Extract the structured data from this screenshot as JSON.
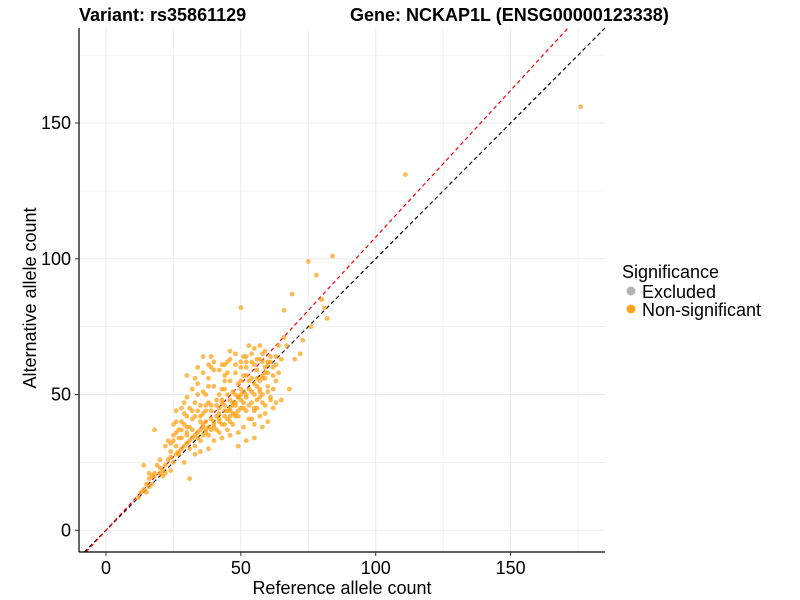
{
  "chart_data": {
    "type": "scatter",
    "title_left": "Variant: rs35861129",
    "title_right": "Gene: NCKAP1L (ENSG00000123338)",
    "xlabel": "Reference allele count",
    "ylabel": "Alternative allele count",
    "xlim": [
      -10,
      185
    ],
    "ylim": [
      -8,
      185
    ],
    "x_ticks": [
      0,
      50,
      100,
      150
    ],
    "y_ticks": [
      0,
      50,
      100,
      150
    ],
    "grid": true,
    "reference_lines": [
      {
        "name": "identity",
        "slope": 1.0,
        "color": "#000000",
        "style": "dashed"
      },
      {
        "name": "fit",
        "slope": 1.08,
        "color": "#ff0000",
        "style": "dashed"
      }
    ],
    "legend": {
      "title": "Significance",
      "position": "right",
      "entries": [
        {
          "label": "Excluded",
          "color": "#b3b3b3"
        },
        {
          "label": "Non-significant",
          "color": "#ffa31a"
        }
      ]
    },
    "series": [
      {
        "name": "Non-significant",
        "color": "#ffa31a",
        "points": [
          [
            176,
            156
          ],
          [
            111,
            131
          ],
          [
            75,
            99
          ],
          [
            84,
            101
          ],
          [
            78,
            94
          ],
          [
            69,
            87
          ],
          [
            80,
            85
          ],
          [
            81,
            82
          ],
          [
            82,
            78
          ],
          [
            76,
            75
          ],
          [
            66,
            81
          ],
          [
            50,
            82
          ],
          [
            73,
            70
          ],
          [
            72,
            65
          ],
          [
            66,
            71
          ],
          [
            64,
            68
          ],
          [
            63,
            61
          ],
          [
            63,
            55
          ],
          [
            58,
            62
          ],
          [
            60,
            58
          ],
          [
            57,
            51
          ],
          [
            56,
            48
          ],
          [
            55,
            44
          ],
          [
            54,
            41
          ],
          [
            52,
            60
          ],
          [
            52,
            57
          ],
          [
            50,
            55
          ],
          [
            50,
            52
          ],
          [
            49,
            49
          ],
          [
            48,
            46
          ],
          [
            47,
            43
          ],
          [
            46,
            40
          ],
          [
            45,
            62
          ],
          [
            45,
            58
          ],
          [
            44,
            55
          ],
          [
            44,
            52
          ],
          [
            43,
            48
          ],
          [
            42,
            45
          ],
          [
            41,
            42
          ],
          [
            40,
            39
          ],
          [
            39,
            64
          ],
          [
            39,
            60
          ],
          [
            38,
            56
          ],
          [
            38,
            53
          ],
          [
            37,
            50
          ],
          [
            37,
            46
          ],
          [
            36,
            43
          ],
          [
            35,
            40
          ],
          [
            35,
            37
          ],
          [
            34,
            54
          ],
          [
            34,
            50
          ],
          [
            33,
            47
          ],
          [
            32,
            44
          ],
          [
            32,
            41
          ],
          [
            31,
            38
          ],
          [
            30,
            35
          ],
          [
            30,
            32
          ],
          [
            29,
            47
          ],
          [
            29,
            43
          ],
          [
            28,
            40
          ],
          [
            28,
            37
          ],
          [
            27,
            34
          ],
          [
            26,
            31
          ],
          [
            26,
            28
          ],
          [
            25,
            39
          ],
          [
            25,
            35
          ],
          [
            24,
            32
          ],
          [
            24,
            29
          ],
          [
            23,
            26
          ],
          [
            22,
            24
          ],
          [
            21,
            22
          ],
          [
            20,
            21
          ],
          [
            19,
            24
          ],
          [
            18,
            21
          ],
          [
            17,
            20
          ],
          [
            16,
            19
          ],
          [
            15,
            17
          ],
          [
            14,
            15
          ],
          [
            13,
            14
          ],
          [
            12,
            12
          ],
          [
            14,
            24
          ],
          [
            16,
            21
          ],
          [
            18,
            37
          ],
          [
            20,
            26
          ],
          [
            22,
            31
          ],
          [
            26,
            44
          ],
          [
            30,
            49
          ],
          [
            33,
            56
          ],
          [
            36,
            64
          ],
          [
            40,
            59
          ],
          [
            43,
            61
          ],
          [
            46,
            66
          ],
          [
            48,
            65
          ],
          [
            51,
            64
          ],
          [
            53,
            68
          ],
          [
            55,
            67
          ],
          [
            57,
            68
          ],
          [
            59,
            66
          ],
          [
            61,
            64
          ],
          [
            62,
            57
          ],
          [
            60,
            53
          ],
          [
            58,
            50
          ],
          [
            56,
            53
          ],
          [
            54,
            56
          ],
          [
            52,
            49
          ],
          [
            50,
            45
          ],
          [
            48,
            42
          ],
          [
            46,
            48
          ],
          [
            44,
            46
          ],
          [
            42,
            50
          ],
          [
            40,
            53
          ],
          [
            38,
            47
          ],
          [
            36,
            51
          ],
          [
            34,
            44
          ],
          [
            32,
            37
          ],
          [
            30,
            42
          ],
          [
            28,
            30
          ],
          [
            26,
            36
          ],
          [
            24,
            27
          ],
          [
            23,
            33
          ],
          [
            27,
            29
          ],
          [
            29,
            25
          ],
          [
            31,
            19
          ],
          [
            33,
            28
          ],
          [
            35,
            33
          ],
          [
            37,
            36
          ],
          [
            39,
            41
          ],
          [
            41,
            37
          ],
          [
            43,
            34
          ],
          [
            45,
            37
          ],
          [
            47,
            39
          ],
          [
            49,
            36
          ],
          [
            51,
            38
          ],
          [
            53,
            41
          ],
          [
            55,
            39
          ],
          [
            57,
            42
          ],
          [
            59,
            46
          ],
          [
            61,
            48
          ],
          [
            63,
            47
          ],
          [
            58,
            56
          ],
          [
            56,
            59
          ],
          [
            54,
            62
          ],
          [
            52,
            64
          ],
          [
            50,
            62
          ],
          [
            48,
            58
          ],
          [
            46,
            55
          ],
          [
            44,
            57
          ],
          [
            42,
            59
          ],
          [
            40,
            62
          ],
          [
            38,
            61
          ],
          [
            36,
            58
          ],
          [
            34,
            60
          ],
          [
            32,
            52
          ],
          [
            30,
            57
          ],
          [
            28,
            45
          ],
          [
            26,
            40
          ],
          [
            44,
            39
          ],
          [
            42,
            36
          ],
          [
            40,
            33
          ],
          [
            38,
            35
          ],
          [
            36,
            38
          ],
          [
            34,
            36
          ],
          [
            32,
            34
          ],
          [
            30,
            38
          ],
          [
            28,
            34
          ],
          [
            41,
            48
          ],
          [
            43,
            52
          ],
          [
            45,
            50
          ],
          [
            47,
            51
          ],
          [
            49,
            54
          ],
          [
            51,
            57
          ],
          [
            53,
            55
          ],
          [
            55,
            61
          ],
          [
            57,
            63
          ],
          [
            59,
            60
          ],
          [
            61,
            62
          ],
          [
            63,
            64
          ],
          [
            65,
            63
          ],
          [
            67,
            68
          ],
          [
            39,
            44
          ],
          [
            37,
            40
          ],
          [
            35,
            46
          ],
          [
            33,
            42
          ],
          [
            31,
            45
          ],
          [
            29,
            39
          ],
          [
            27,
            37
          ],
          [
            25,
            33
          ],
          [
            47,
            47
          ],
          [
            49,
            49
          ],
          [
            51,
            51
          ],
          [
            53,
            52
          ],
          [
            55,
            54
          ],
          [
            57,
            55
          ],
          [
            59,
            58
          ],
          [
            42,
            43
          ],
          [
            44,
            44
          ],
          [
            46,
            45
          ],
          [
            48,
            47
          ],
          [
            50,
            48
          ],
          [
            52,
            50
          ],
          [
            54,
            51
          ],
          [
            56,
            56
          ],
          [
            58,
            57
          ],
          [
            60,
            61
          ],
          [
            36,
            35
          ],
          [
            38,
            38
          ],
          [
            40,
            40
          ],
          [
            42,
            41
          ],
          [
            44,
            42
          ],
          [
            46,
            44
          ],
          [
            48,
            50
          ],
          [
            50,
            50
          ],
          [
            35,
            42
          ],
          [
            37,
            44
          ],
          [
            39,
            46
          ],
          [
            41,
            46
          ],
          [
            43,
            47
          ],
          [
            45,
            44
          ],
          [
            47,
            46
          ],
          [
            49,
            44
          ],
          [
            51,
            47
          ],
          [
            53,
            46
          ],
          [
            55,
            50
          ],
          [
            57,
            52
          ],
          [
            59,
            56
          ],
          [
            62,
            52
          ],
          [
            64,
            58
          ],
          [
            55,
            34
          ],
          [
            58,
            38
          ],
          [
            60,
            40
          ],
          [
            52,
            33
          ],
          [
            49,
            31
          ],
          [
            46,
            35
          ],
          [
            38,
            30
          ],
          [
            35,
            29
          ],
          [
            33,
            31
          ],
          [
            31,
            30
          ],
          [
            29,
            31
          ],
          [
            27,
            28
          ],
          [
            25,
            25
          ],
          [
            24,
            22
          ],
          [
            22,
            21
          ],
          [
            21,
            20
          ],
          [
            20,
            23
          ],
          [
            18,
            20
          ],
          [
            17,
            17
          ],
          [
            16,
            16
          ],
          [
            15,
            14
          ],
          [
            30,
            36
          ],
          [
            33,
            35
          ],
          [
            36,
            39
          ],
          [
            39,
            37
          ],
          [
            42,
            40
          ],
          [
            45,
            41
          ],
          [
            48,
            43
          ],
          [
            51,
            45
          ],
          [
            54,
            47
          ],
          [
            57,
            49
          ],
          [
            60,
            51
          ],
          [
            31,
            33
          ],
          [
            34,
            34
          ],
          [
            37,
            37
          ],
          [
            40,
            38
          ],
          [
            43,
            39
          ],
          [
            46,
            42
          ],
          [
            49,
            42
          ],
          [
            52,
            44
          ],
          [
            55,
            45
          ],
          [
            58,
            47
          ],
          [
            61,
            49
          ],
          [
            44,
            61
          ],
          [
            46,
            63
          ],
          [
            48,
            61
          ],
          [
            50,
            60
          ],
          [
            52,
            62
          ],
          [
            54,
            65
          ],
          [
            56,
            63
          ],
          [
            58,
            65
          ],
          [
            60,
            62
          ],
          [
            62,
            60
          ],
          [
            56,
            45
          ],
          [
            59,
            43
          ],
          [
            62,
            45
          ],
          [
            65,
            48
          ],
          [
            68,
            52
          ],
          [
            70,
            63
          ]
        ]
      }
    ]
  }
}
